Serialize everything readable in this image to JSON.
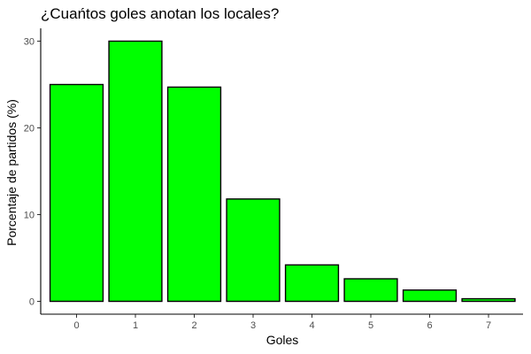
{
  "chart_data": {
    "type": "bar",
    "title": "¿Cuańtos goles anotan los locales?",
    "xlabel": "Goles",
    "ylabel": "Porcentaje de partidos (%)",
    "categories": [
      "0",
      "1",
      "2",
      "3",
      "4",
      "5",
      "6",
      "7"
    ],
    "values": [
      25.0,
      30.0,
      24.7,
      11.8,
      4.2,
      2.6,
      1.3,
      0.3
    ],
    "ylim": [
      0,
      31.5
    ],
    "yticks": [
      0,
      10,
      20,
      30
    ],
    "grid": false,
    "legend": "none",
    "bar_color": "#00ff00",
    "bar_edge_color": "#000000"
  }
}
